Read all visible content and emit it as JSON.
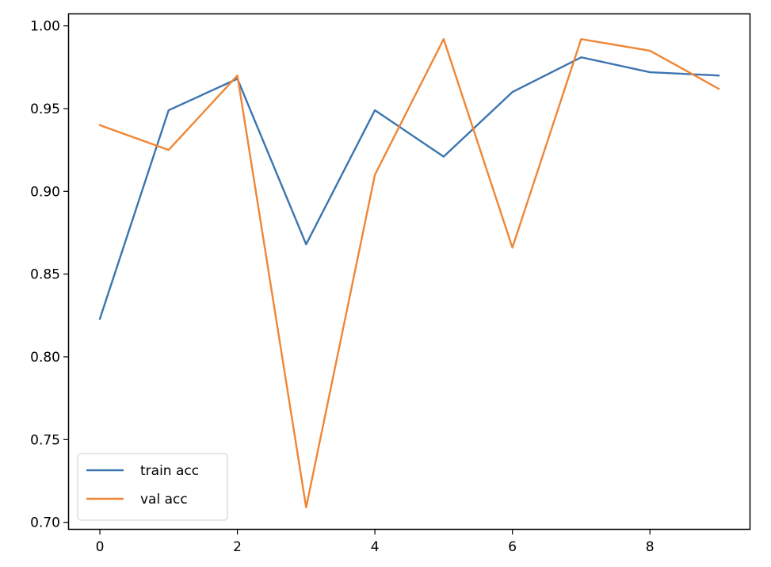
{
  "chart_data": {
    "type": "line",
    "x": [
      0,
      1,
      2,
      3,
      4,
      5,
      6,
      7,
      8,
      9
    ],
    "series": [
      {
        "name": "train acc",
        "color": "#3b75af",
        "values": [
          0.823,
          0.949,
          0.968,
          0.868,
          0.949,
          0.921,
          0.96,
          0.981,
          0.972,
          0.97
        ]
      },
      {
        "name": "val acc",
        "color": "#ef8636",
        "values": [
          0.94,
          0.925,
          0.97,
          0.709,
          0.91,
          0.992,
          0.866,
          0.992,
          0.985,
          0.962
        ]
      }
    ],
    "xticks": [
      0,
      2,
      4,
      6,
      8
    ],
    "yticks": [
      0.7,
      0.75,
      0.8,
      0.85,
      0.9,
      0.95,
      1.0
    ],
    "xlim": [
      -0.45,
      9.45
    ],
    "ylim": [
      0.696,
      1.007
    ],
    "title": "",
    "xlabel": "",
    "ylabel": "",
    "grid": false,
    "legend_position": "lower-left"
  }
}
